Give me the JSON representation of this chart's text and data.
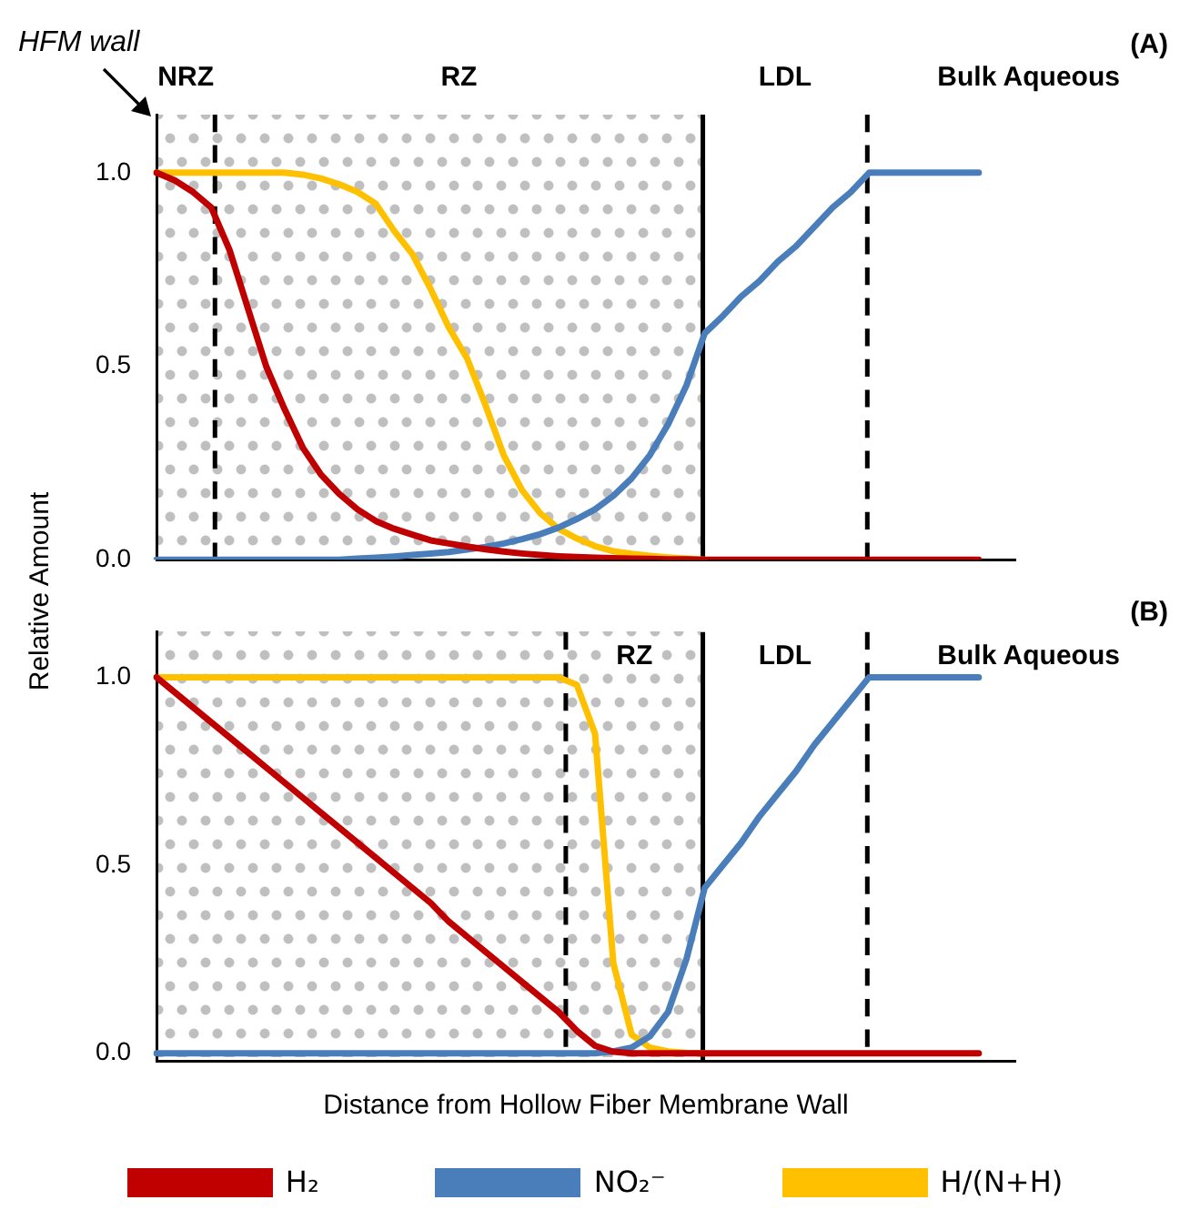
{
  "chart_data": [
    {
      "type": "line",
      "ylabel": "Relative Amount",
      "categories": [
        null,
        null,
        null,
        null,
        null,
        null,
        null,
        null,
        null,
        null,
        null,
        null,
        null,
        null,
        null,
        null,
        null,
        null,
        null,
        null,
        null,
        null,
        null,
        null,
        null,
        null,
        null,
        null,
        null,
        null,
        null,
        null,
        null,
        null,
        null,
        null,
        null,
        null,
        null,
        null,
        null,
        null,
        null,
        null,
        null,
        null,
        null,
        null
      ],
      "ylim": [
        0,
        1.15
      ],
      "yticks": [
        {
          "value": 0,
          "label": "0.0"
        },
        {
          "value": 0.5,
          "label": "0.5"
        },
        {
          "value": 1,
          "label": "1.0"
        }
      ],
      "tick_labels": "y",
      "grid": false,
      "legend": false,
      "marker": "none",
      "line_style": "solid",
      "series": [
        {
          "color": "#c00000",
          "values": [
            1,
            0.98,
            0.95,
            0.91,
            0.8,
            0.65,
            0.5,
            0.39,
            0.29,
            0.22,
            0.17,
            0.13,
            0.1,
            0.08,
            0.065,
            0.05,
            0.042,
            0.034,
            0.027,
            0.021,
            0.016,
            0.012,
            0.009,
            0.007,
            0.005,
            0.004,
            0.003,
            0.002,
            0.001,
            0.001,
            0,
            0,
            0,
            0,
            0,
            0,
            0,
            0,
            0,
            0,
            0,
            0,
            0,
            0,
            0,
            0,
            null,
            null
          ]
        },
        {
          "color": "#4a7ebb",
          "values": [
            0,
            0,
            0,
            0,
            0,
            0,
            0,
            0,
            0,
            0,
            0,
            0.003,
            0.005,
            0.008,
            0.012,
            0.016,
            0.02,
            0.026,
            0.033,
            0.042,
            0.053,
            0.066,
            0.083,
            0.105,
            0.13,
            0.165,
            0.21,
            0.27,
            0.35,
            0.45,
            0.585,
            0.63,
            0.68,
            0.72,
            0.77,
            0.81,
            0.86,
            0.91,
            0.95,
            1,
            1,
            1,
            1,
            1,
            1,
            1,
            null,
            null
          ]
        },
        {
          "color": "#ffc000",
          "values": [
            1,
            1,
            1,
            1,
            1,
            1,
            1,
            1,
            0.995,
            0.985,
            0.97,
            0.95,
            0.92,
            0.85,
            0.79,
            0.7,
            0.6,
            0.52,
            0.4,
            0.27,
            0.18,
            0.12,
            0.08,
            0.055,
            0.035,
            0.022,
            0.015,
            0.01,
            0.006,
            0.003,
            0,
            null,
            null,
            null,
            null,
            null,
            null,
            null,
            null,
            null,
            null,
            null,
            null,
            null,
            null,
            null,
            null,
            null
          ]
        }
      ],
      "annotations": [
        "HFM wall",
        "NRZ",
        "RZ",
        "LDL",
        "Bulk Aqueous",
        {
          "text": "(A)"
        }
      ]
    },
    {
      "type": "line",
      "xlabel": "Distance from Hollow Fiber Membrane Wall",
      "categories": [
        null,
        null,
        null,
        null,
        null,
        null,
        null,
        null,
        null,
        null,
        null,
        null,
        null,
        null,
        null,
        null,
        null,
        null,
        null,
        null,
        null,
        null,
        null,
        null,
        null,
        null,
        null,
        null,
        null,
        null,
        null,
        null,
        null,
        null,
        null,
        null,
        null,
        null,
        null,
        null,
        null,
        null,
        null,
        null,
        null,
        null,
        null,
        null
      ],
      "ylim": [
        -0.02,
        1.12
      ],
      "yticks": [
        {
          "value": 0,
          "label": "0.0"
        },
        {
          "value": 0.5,
          "label": "0.5"
        },
        {
          "value": 1,
          "label": "1.0"
        }
      ],
      "tick_labels": "y",
      "grid": false,
      "legend": "bottom",
      "marker": "none",
      "line_style": "solid",
      "series": [
        {
          "name": "H₂",
          "color": "#c00000",
          "values": [
            1,
            0.96,
            0.92,
            0.88,
            0.84,
            0.8,
            0.76,
            0.72,
            0.68,
            0.64,
            0.6,
            0.56,
            0.52,
            0.48,
            0.44,
            0.4,
            0.35,
            0.31,
            0.27,
            0.23,
            0.19,
            0.15,
            0.11,
            0.06,
            0.02,
            0.004,
            0,
            0,
            0,
            0,
            0,
            0,
            0,
            0,
            0,
            0,
            0,
            0,
            0,
            0,
            0,
            0,
            0,
            0,
            0,
            0,
            null,
            null
          ]
        },
        {
          "name": "NO₂⁻",
          "color": "#4a7ebb",
          "values": [
            0,
            0,
            0,
            0,
            0,
            0,
            0,
            0,
            0,
            0,
            0,
            0,
            0,
            0,
            0,
            0,
            0,
            0,
            0,
            0,
            0,
            0,
            0,
            0,
            0,
            0.005,
            0.015,
            0.045,
            0.11,
            0.25,
            0.44,
            0.5,
            0.56,
            0.63,
            0.69,
            0.75,
            0.82,
            0.88,
            0.94,
            1,
            1,
            1,
            1,
            1,
            1,
            1,
            null,
            null
          ]
        },
        {
          "name": "H/(N+H)",
          "color": "#ffc000",
          "values": [
            1,
            1,
            1,
            1,
            1,
            1,
            1,
            1,
            1,
            1,
            1,
            1,
            1,
            1,
            1,
            1,
            1,
            1,
            1,
            1,
            1,
            1,
            1,
            0.98,
            0.85,
            0.24,
            0.05,
            0.015,
            0.005,
            0.001,
            0,
            null,
            null,
            null,
            null,
            null,
            null,
            null,
            null,
            null,
            null,
            null,
            null,
            null,
            null,
            null,
            null,
            null
          ]
        }
      ],
      "annotations": [
        "RZ",
        "LDL",
        "Bulk Aqueous",
        {
          "text": "(B)"
        }
      ]
    }
  ]
}
